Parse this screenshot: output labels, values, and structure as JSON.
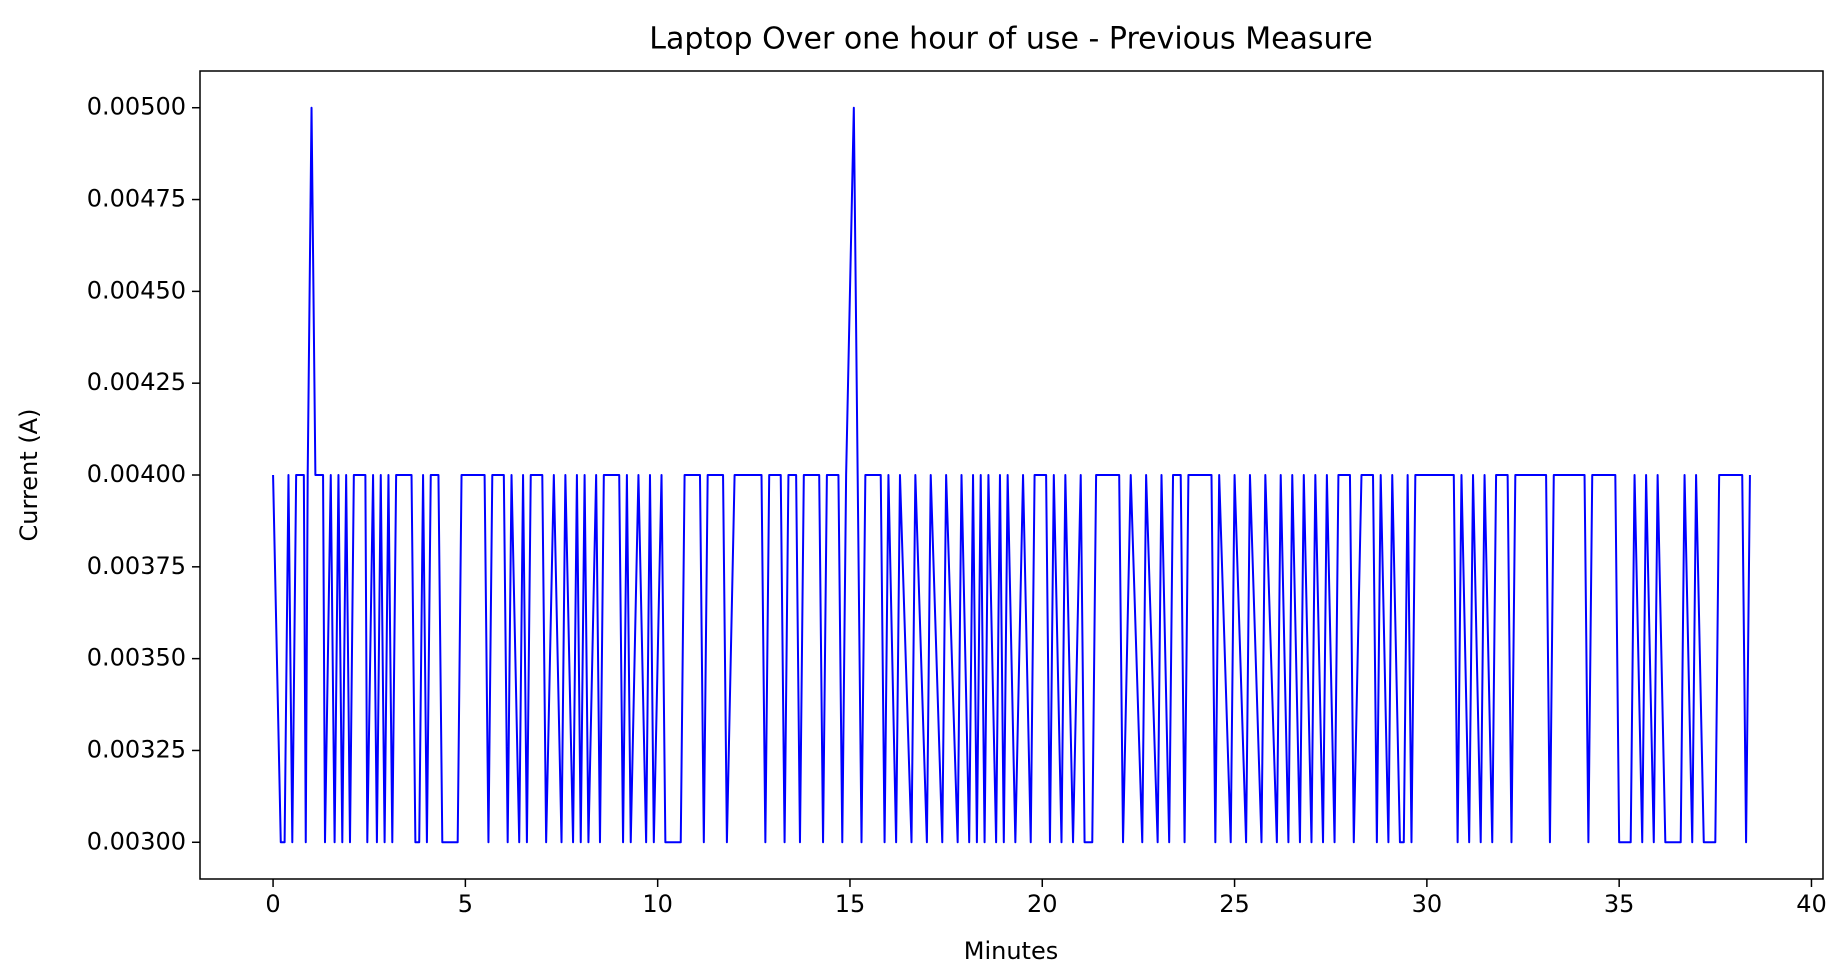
{
  "chart_data": {
    "type": "line",
    "title": "Laptop Over one hour of use -  Previous Measure",
    "xlabel": "Minutes",
    "ylabel": "Current (A)",
    "color": "#0000ff",
    "x": [
      0,
      0.2,
      0.3,
      0.4,
      0.5,
      0.6,
      0.8,
      0.85,
      0.9,
      1.0,
      1.1,
      1.3,
      1.35,
      1.5,
      1.6,
      1.7,
      1.8,
      1.9,
      2.0,
      2.1,
      2.4,
      2.45,
      2.6,
      2.7,
      2.8,
      2.9,
      3.0,
      3.1,
      3.2,
      3.6,
      3.7,
      3.8,
      3.9,
      4.0,
      4.1,
      4.3,
      4.4,
      4.8,
      4.9,
      5.5,
      5.6,
      5.7,
      6.0,
      6.1,
      6.2,
      6.4,
      6.5,
      6.6,
      6.7,
      7.0,
      7.1,
      7.3,
      7.5,
      7.6,
      7.8,
      7.9,
      8.0,
      8.1,
      8.2,
      8.4,
      8.5,
      8.6,
      9.0,
      9.1,
      9.2,
      9.3,
      9.5,
      9.7,
      9.8,
      9.9,
      10.1,
      10.2,
      10.6,
      10.7,
      11.1,
      11.2,
      11.3,
      11.7,
      11.8,
      12.0,
      12.7,
      12.8,
      12.9,
      13.2,
      13.3,
      13.4,
      13.6,
      13.7,
      13.8,
      14.2,
      14.3,
      14.4,
      14.7,
      14.8,
      14.9,
      15.1,
      15.2,
      15.3,
      15.4,
      15.8,
      15.9,
      16.0,
      16.2,
      16.3,
      16.6,
      16.7,
      17.0,
      17.1,
      17.4,
      17.5,
      17.8,
      17.9,
      18.1,
      18.2,
      18.3,
      18.4,
      18.5,
      18.6,
      18.8,
      18.9,
      19.0,
      19.1,
      19.3,
      19.5,
      19.7,
      19.8,
      20.1,
      20.2,
      20.3,
      20.5,
      20.6,
      20.8,
      21.0,
      21.1,
      21.3,
      21.4,
      22.0,
      22.1,
      22.3,
      22.6,
      22.7,
      23.0,
      23.1,
      23.3,
      23.4,
      23.6,
      23.7,
      23.8,
      24.4,
      24.5,
      24.6,
      24.9,
      25.0,
      25.3,
      25.4,
      25.7,
      25.8,
      26.1,
      26.2,
      26.4,
      26.5,
      26.7,
      26.8,
      27.0,
      27.1,
      27.3,
      27.4,
      27.6,
      27.7,
      28.0,
      28.1,
      28.3,
      28.6,
      28.7,
      28.8,
      29.0,
      29.1,
      29.3,
      29.4,
      29.5,
      29.6,
      29.7,
      30.7,
      30.8,
      30.9,
      31.1,
      31.2,
      31.4,
      31.5,
      31.7,
      31.8,
      32.1,
      32.2,
      32.3,
      33.1,
      33.2,
      33.3,
      34.1,
      34.2,
      34.3,
      34.9,
      35.0,
      35.3,
      35.4,
      35.6,
      35.7,
      35.9,
      36.0,
      36.2,
      36.6,
      36.7,
      36.9,
      37.0,
      37.2,
      37.5,
      37.6,
      38.2,
      38.3,
      38.4
    ],
    "values": [
      0.004,
      0.003,
      0.003,
      0.004,
      0.003,
      0.004,
      0.004,
      0.003,
      0.004,
      0.005,
      0.004,
      0.004,
      0.003,
      0.004,
      0.003,
      0.004,
      0.003,
      0.004,
      0.003,
      0.004,
      0.004,
      0.003,
      0.004,
      0.003,
      0.004,
      0.003,
      0.004,
      0.003,
      0.004,
      0.004,
      0.003,
      0.003,
      0.004,
      0.003,
      0.004,
      0.004,
      0.003,
      0.003,
      0.004,
      0.004,
      0.003,
      0.004,
      0.004,
      0.003,
      0.004,
      0.003,
      0.004,
      0.003,
      0.004,
      0.004,
      0.003,
      0.004,
      0.003,
      0.004,
      0.003,
      0.004,
      0.003,
      0.004,
      0.003,
      0.004,
      0.003,
      0.004,
      0.004,
      0.003,
      0.004,
      0.003,
      0.004,
      0.003,
      0.004,
      0.003,
      0.004,
      0.003,
      0.003,
      0.004,
      0.004,
      0.003,
      0.004,
      0.004,
      0.003,
      0.004,
      0.004,
      0.003,
      0.004,
      0.004,
      0.003,
      0.004,
      0.004,
      0.003,
      0.004,
      0.004,
      0.003,
      0.004,
      0.004,
      0.003,
      0.004,
      0.005,
      0.004,
      0.003,
      0.004,
      0.004,
      0.003,
      0.004,
      0.003,
      0.004,
      0.003,
      0.004,
      0.003,
      0.004,
      0.003,
      0.004,
      0.003,
      0.004,
      0.003,
      0.004,
      0.003,
      0.004,
      0.003,
      0.004,
      0.003,
      0.004,
      0.003,
      0.004,
      0.003,
      0.004,
      0.003,
      0.004,
      0.004,
      0.003,
      0.004,
      0.003,
      0.004,
      0.003,
      0.004,
      0.003,
      0.003,
      0.004,
      0.004,
      0.003,
      0.004,
      0.003,
      0.004,
      0.003,
      0.004,
      0.003,
      0.004,
      0.004,
      0.003,
      0.004,
      0.004,
      0.003,
      0.004,
      0.003,
      0.004,
      0.003,
      0.004,
      0.003,
      0.004,
      0.003,
      0.004,
      0.003,
      0.004,
      0.003,
      0.004,
      0.003,
      0.004,
      0.003,
      0.004,
      0.003,
      0.004,
      0.004,
      0.003,
      0.004,
      0.004,
      0.003,
      0.004,
      0.003,
      0.004,
      0.003,
      0.003,
      0.004,
      0.003,
      0.004,
      0.004,
      0.003,
      0.004,
      0.003,
      0.004,
      0.003,
      0.004,
      0.003,
      0.004,
      0.004,
      0.003,
      0.004,
      0.004,
      0.003,
      0.004,
      0.004,
      0.003,
      0.004,
      0.004,
      0.003,
      0.003,
      0.004,
      0.003,
      0.004,
      0.003,
      0.004,
      0.003,
      0.003,
      0.004,
      0.003,
      0.004,
      0.003,
      0.003,
      0.004,
      0.004,
      0.003,
      0.004
    ],
    "xlim": [
      -1.9,
      40.3
    ],
    "ylim": [
      0.0029,
      0.0051
    ],
    "xticks": [
      0,
      5,
      10,
      15,
      20,
      25,
      30,
      35,
      40
    ],
    "yticks": [
      {
        "value": 0.003,
        "label": "0.00300"
      },
      {
        "value": 0.00325,
        "label": "0.00325"
      },
      {
        "value": 0.0035,
        "label": "0.00350"
      },
      {
        "value": 0.00375,
        "label": "0.00375"
      },
      {
        "value": 0.004,
        "label": "0.00400"
      },
      {
        "value": 0.00425,
        "label": "0.00425"
      },
      {
        "value": 0.0045,
        "label": "0.00450"
      },
      {
        "value": 0.00475,
        "label": "0.00475"
      },
      {
        "value": 0.005,
        "label": "0.00500"
      }
    ],
    "grid": false
  }
}
